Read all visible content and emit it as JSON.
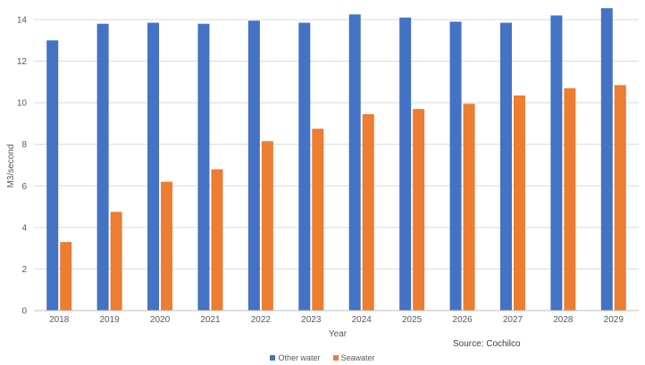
{
  "chart_data": {
    "type": "bar",
    "categories": [
      "2018",
      "2019",
      "2020",
      "2021",
      "2022",
      "2023",
      "2024",
      "2025",
      "2026",
      "2027",
      "2028",
      "2029"
    ],
    "series": [
      {
        "name": "Other water",
        "color": "#4472C4",
        "values": [
          13.0,
          13.8,
          13.85,
          13.8,
          13.95,
          13.85,
          14.25,
          14.1,
          13.9,
          13.85,
          14.2,
          14.55
        ]
      },
      {
        "name": "Seawater",
        "color": "#ED7D31",
        "values": [
          3.3,
          4.75,
          6.2,
          6.8,
          8.15,
          8.75,
          9.45,
          9.7,
          9.95,
          10.35,
          10.7,
          10.85
        ]
      }
    ],
    "xlabel": "Year",
    "ylabel": "M3/second",
    "ylim": [
      0,
      14
    ],
    "yticks": [
      0,
      2,
      4,
      6,
      8,
      10,
      12,
      14
    ],
    "grid": true,
    "legend_position": "bottom",
    "source": "Source: Cochilco"
  }
}
